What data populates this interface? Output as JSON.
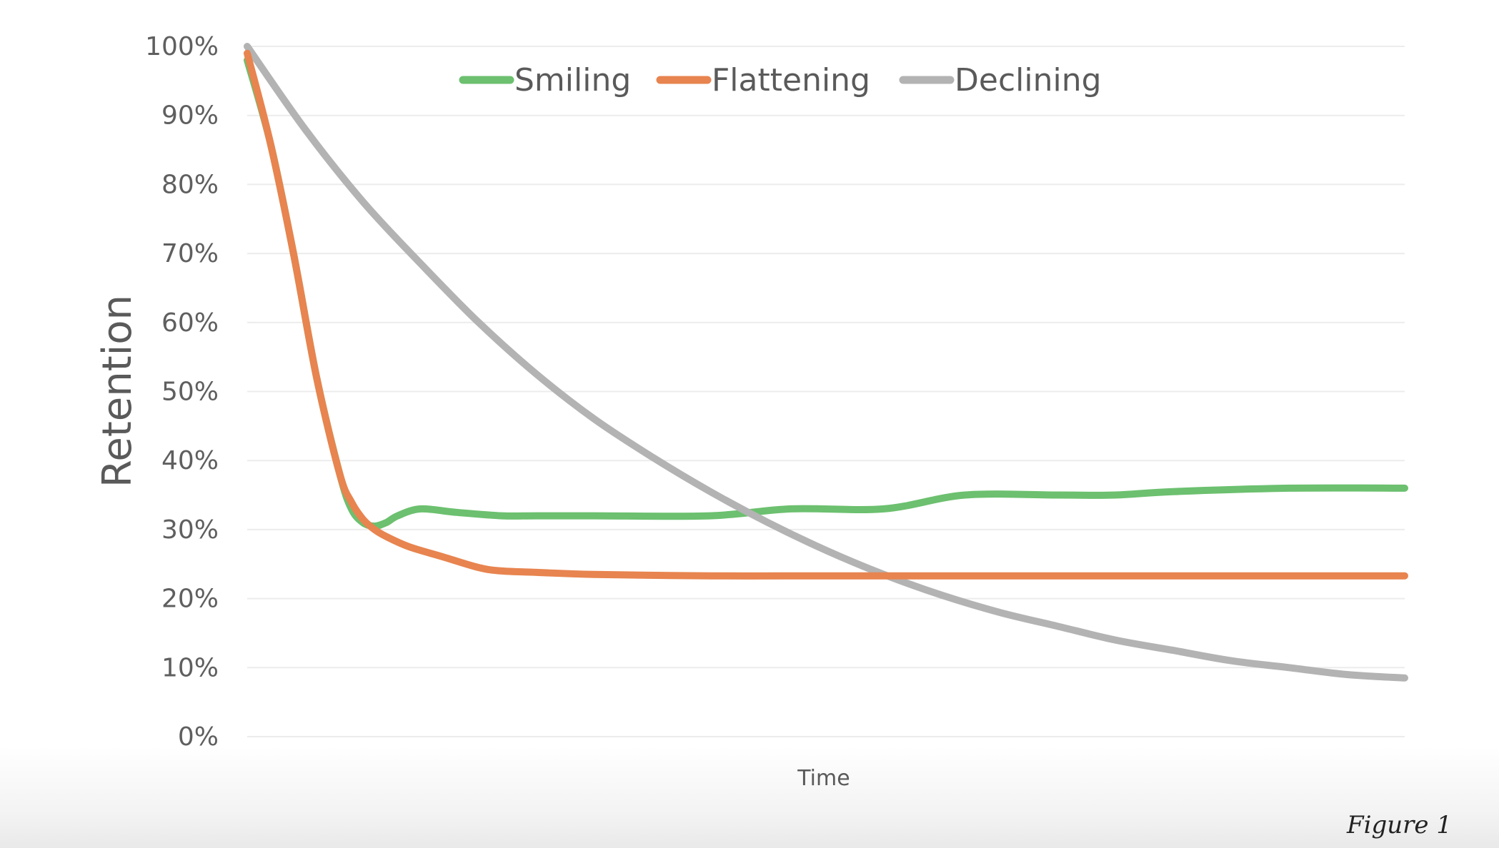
{
  "caption": "Figure 1",
  "chart_data": {
    "type": "line",
    "xlabel": "Time",
    "ylabel": "Retention",
    "ylim": [
      0,
      100
    ],
    "xlim": [
      0,
      100
    ],
    "y_ticks": [
      "0%",
      "10%",
      "20%",
      "30%",
      "40%",
      "50%",
      "60%",
      "70%",
      "80%",
      "90%",
      "100%"
    ],
    "grid": true,
    "legend_position": "top-center",
    "series": [
      {
        "name": "Smiling",
        "color": "#6cc06f",
        "x": [
          0,
          2,
          4,
          6,
          8,
          9,
          10,
          11,
          12,
          13,
          15,
          18,
          22,
          25,
          30,
          40,
          47,
          55,
          62,
          70,
          75,
          80,
          90,
          100
        ],
        "y": [
          98,
          86,
          70,
          52,
          38,
          33,
          31,
          30.5,
          31,
          32,
          33,
          32.5,
          32,
          32,
          32,
          32,
          33,
          33,
          35,
          35,
          35,
          35.5,
          36,
          36
        ]
      },
      {
        "name": "Flattening",
        "color": "#e8844f",
        "x": [
          0,
          2,
          4,
          6,
          8,
          9,
          10,
          11,
          12,
          14,
          17,
          20,
          22,
          25,
          30,
          40,
          50,
          60,
          70,
          80,
          90,
          100
        ],
        "y": [
          99,
          86,
          70,
          52,
          38,
          34,
          31.5,
          30,
          29,
          27.5,
          26,
          24.5,
          24,
          23.8,
          23.5,
          23.3,
          23.3,
          23.3,
          23.3,
          23.3,
          23.3,
          23.3
        ]
      },
      {
        "name": "Declining",
        "color": "#b3b3b3",
        "x": [
          0,
          5,
          10,
          15,
          20,
          25,
          30,
          35,
          40,
          45,
          50,
          55,
          60,
          65,
          70,
          75,
          80,
          85,
          90,
          95,
          100
        ],
        "y": [
          100,
          88,
          77.5,
          68.5,
          60,
          52.5,
          46,
          40.5,
          35.5,
          31,
          27,
          23.5,
          20.5,
          18,
          16,
          14,
          12.5,
          11,
          10,
          9,
          8.5
        ]
      }
    ]
  }
}
